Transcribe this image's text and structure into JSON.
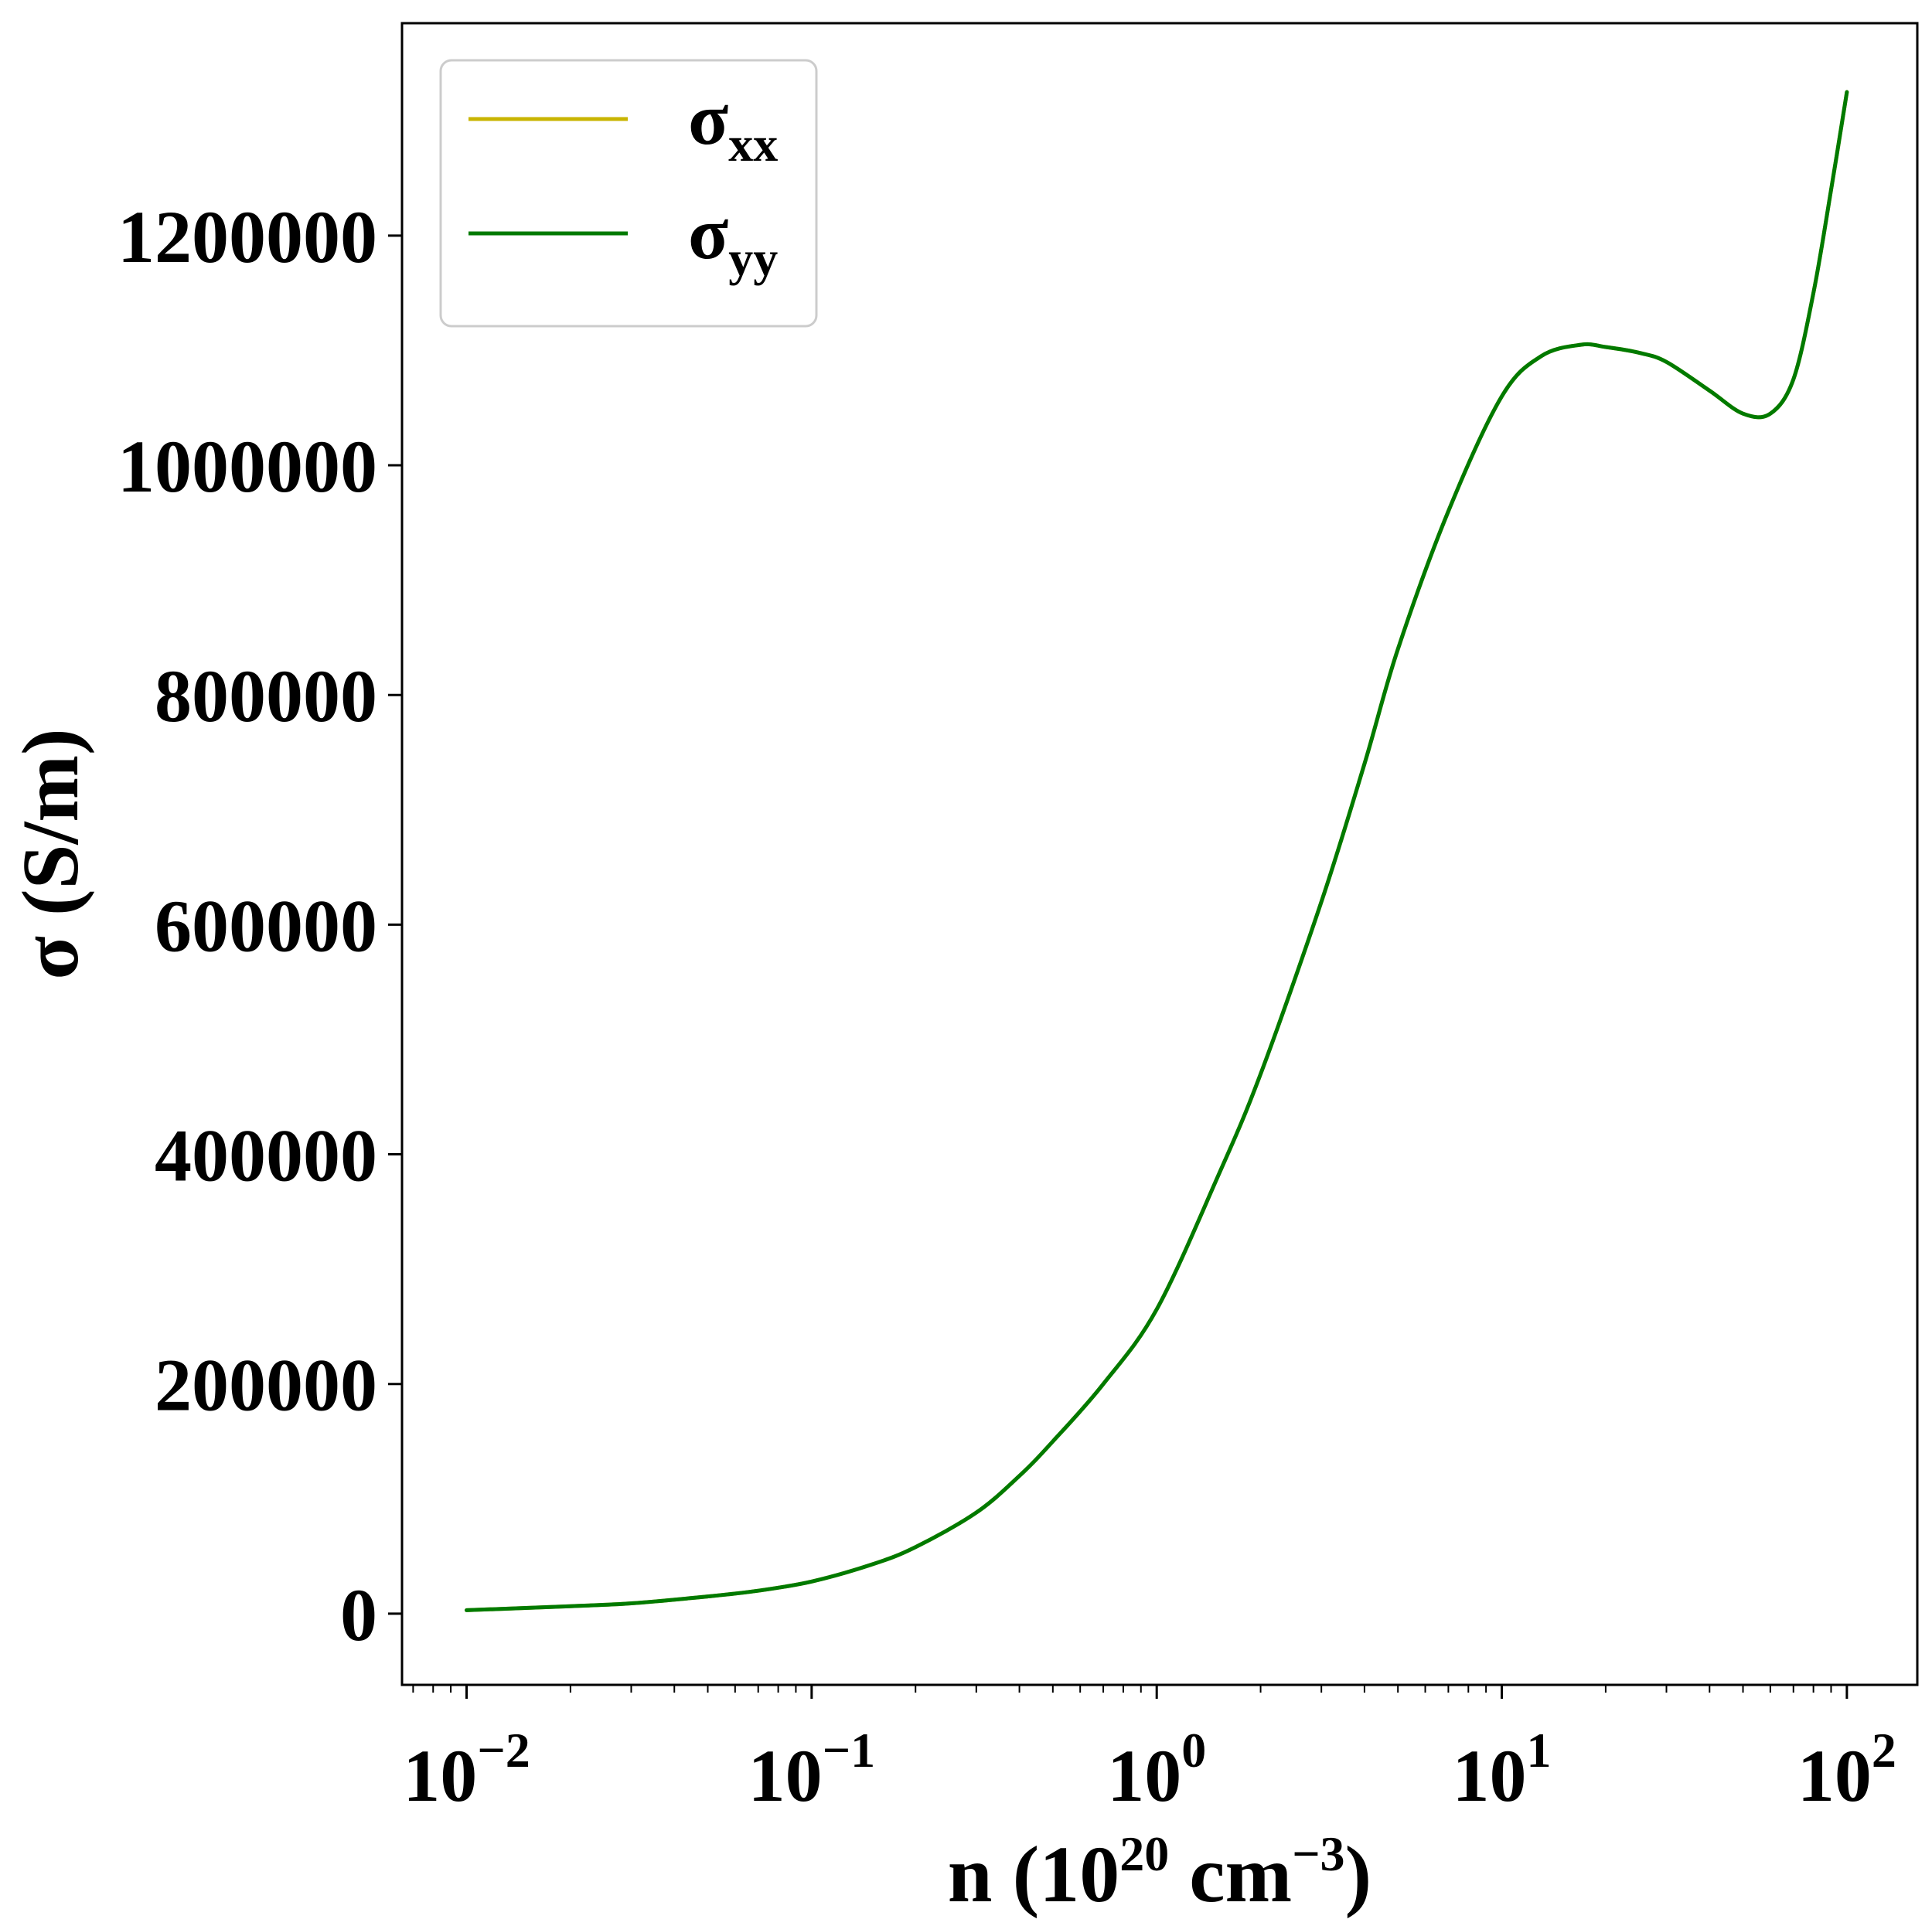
{
  "chart_data": {
    "type": "line",
    "xscale": "log",
    "xlim": [
      0.0065,
      160
    ],
    "ylim": [
      -62000,
      1385000
    ],
    "xlabel": {
      "base": "n (10",
      "sup1": "20",
      "mid": " cm",
      "sup2": "−3",
      "end": ")"
    },
    "ylabel": "σ (S/m)",
    "grid": false,
    "legend_position": "top-left",
    "x_ticks": [
      {
        "value": 0.01,
        "base": "10",
        "exp": "−2"
      },
      {
        "value": 0.1,
        "base": "10",
        "exp": "−1"
      },
      {
        "value": 1,
        "base": "10",
        "exp": "0"
      },
      {
        "value": 10,
        "base": "10",
        "exp": "1"
      },
      {
        "value": 100,
        "base": "10",
        "exp": "2"
      }
    ],
    "y_ticks": [
      {
        "value": 0,
        "label": "0"
      },
      {
        "value": 200000,
        "label": "200000"
      },
      {
        "value": 400000,
        "label": "400000"
      },
      {
        "value": 600000,
        "label": "600000"
      },
      {
        "value": 800000,
        "label": "800000"
      },
      {
        "value": 1000000,
        "label": "1000000"
      },
      {
        "value": 1200000,
        "label": "1200000"
      }
    ],
    "x": [
      0.01,
      0.02,
      0.03,
      0.05,
      0.07,
      0.1,
      0.15,
      0.2,
      0.3,
      0.4,
      0.5,
      0.7,
      1.0,
      1.5,
      2.0,
      3.0,
      4.0,
      5.0,
      7.0,
      10.0,
      13.0,
      17.0,
      20.0,
      25.0,
      30.0,
      40.0,
      50.0,
      60.0,
      70.0,
      80.0,
      90.0,
      100.0
    ],
    "series": [
      {
        "name": "σ",
        "name_sub": "xx",
        "color": "#c8b400",
        "values": [
          3000,
          6500,
          9000,
          15000,
          20000,
          28000,
          43000,
          58000,
          88000,
          120000,
          150000,
          200000,
          265000,
          380000,
          470000,
          620000,
          740000,
          840000,
          960000,
          1060000,
          1095000,
          1105000,
          1103000,
          1098000,
          1090000,
          1065000,
          1045000,
          1045000,
          1075000,
          1150000,
          1240000,
          1325000
        ]
      },
      {
        "name": "σ",
        "name_sub": "yy",
        "color": "#007a00",
        "values": [
          3000,
          6500,
          9000,
          15000,
          20000,
          28000,
          43000,
          58000,
          88000,
          120000,
          150000,
          200000,
          265000,
          380000,
          470000,
          620000,
          740000,
          840000,
          960000,
          1060000,
          1095000,
          1105000,
          1103000,
          1098000,
          1090000,
          1065000,
          1045000,
          1045000,
          1075000,
          1150000,
          1240000,
          1325000
        ]
      }
    ]
  }
}
